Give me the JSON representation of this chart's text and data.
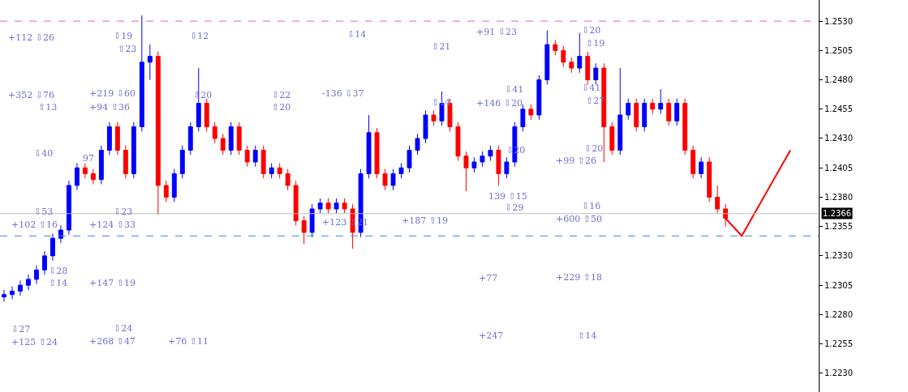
{
  "chart_data": {
    "type": "candlestick",
    "categories": [
      null,
      null,
      null,
      null,
      null,
      null,
      null,
      null,
      null,
      null,
      null,
      null,
      null,
      null,
      null,
      null,
      null,
      null,
      null,
      null,
      null,
      null,
      null,
      null,
      null,
      null,
      null,
      null,
      null,
      null,
      null,
      null,
      null,
      null,
      null,
      null,
      null,
      null,
      null,
      null,
      null,
      null,
      null,
      null,
      null,
      null,
      null,
      null,
      null,
      null,
      null,
      null,
      null,
      null,
      null,
      null,
      null,
      null,
      null,
      null,
      null,
      null,
      null,
      null,
      null,
      null,
      null,
      null,
      null,
      null,
      null,
      null,
      null,
      null,
      null,
      null,
      null,
      null,
      null,
      null,
      null,
      null,
      null,
      null,
      null,
      null,
      null,
      null,
      null,
      null,
      null,
      null,
      null,
      null,
      null,
      null,
      null,
      null,
      null,
      null,
      null
    ],
    "ohlc": [
      [
        1.2295,
        1.2301,
        1.2291,
        1.2297
      ],
      [
        1.2297,
        1.2304,
        1.2293,
        1.23
      ],
      [
        1.23,
        1.2309,
        1.2296,
        1.2305
      ],
      [
        1.2305,
        1.2314,
        1.2301,
        1.231
      ],
      [
        1.231,
        1.2322,
        1.2306,
        1.2318
      ],
      [
        1.2318,
        1.2334,
        1.2314,
        1.233
      ],
      [
        1.233,
        1.2349,
        1.2326,
        1.2345
      ],
      [
        1.2345,
        1.2356,
        1.2341,
        1.2352
      ],
      [
        1.2352,
        1.2394,
        1.2348,
        1.239
      ],
      [
        1.239,
        1.2409,
        1.2386,
        1.2405
      ],
      [
        1.2405,
        1.2409,
        1.2396,
        1.24
      ],
      [
        1.24,
        1.2404,
        1.2391,
        1.2395
      ],
      [
        1.2395,
        1.2424,
        1.2391,
        1.242
      ],
      [
        1.242,
        1.2444,
        1.2416,
        1.244
      ],
      [
        1.244,
        1.2444,
        1.2416,
        1.242
      ],
      [
        1.242,
        1.2424,
        1.2396,
        1.24
      ],
      [
        1.24,
        1.2444,
        1.2396,
        1.244
      ],
      [
        1.244,
        1.2535,
        1.2436,
        1.2495
      ],
      [
        1.2495,
        1.251,
        1.248,
        1.25
      ],
      [
        1.25,
        1.2504,
        1.2365,
        1.239
      ],
      [
        1.239,
        1.2394,
        1.2376,
        1.238
      ],
      [
        1.238,
        1.2404,
        1.2376,
        1.24
      ],
      [
        1.24,
        1.2424,
        1.2396,
        1.242
      ],
      [
        1.242,
        1.2444,
        1.2416,
        1.244
      ],
      [
        1.244,
        1.249,
        1.2436,
        1.246
      ],
      [
        1.246,
        1.2464,
        1.2436,
        1.244
      ],
      [
        1.244,
        1.2444,
        1.2426,
        1.243
      ],
      [
        1.243,
        1.2434,
        1.2416,
        1.242
      ],
      [
        1.242,
        1.2444,
        1.2416,
        1.244
      ],
      [
        1.244,
        1.2444,
        1.2416,
        1.242
      ],
      [
        1.242,
        1.2424,
        1.2406,
        1.241
      ],
      [
        1.241,
        1.2424,
        1.2406,
        1.242
      ],
      [
        1.242,
        1.2424,
        1.2396,
        1.24
      ],
      [
        1.24,
        1.2409,
        1.2396,
        1.2405
      ],
      [
        1.2405,
        1.2409,
        1.2396,
        1.24
      ],
      [
        1.24,
        1.2404,
        1.2386,
        1.239
      ],
      [
        1.239,
        1.2394,
        1.2356,
        1.236
      ],
      [
        1.236,
        1.2364,
        1.234,
        1.235
      ],
      [
        1.235,
        1.2374,
        1.2346,
        1.237
      ],
      [
        1.237,
        1.2379,
        1.2366,
        1.2375
      ],
      [
        1.2375,
        1.2379,
        1.2366,
        1.237
      ],
      [
        1.237,
        1.2379,
        1.2366,
        1.2375
      ],
      [
        1.2375,
        1.2379,
        1.2366,
        1.237
      ],
      [
        1.237,
        1.2374,
        1.2336,
        1.235
      ],
      [
        1.235,
        1.2404,
        1.2346,
        1.24
      ],
      [
        1.24,
        1.245,
        1.2396,
        1.2435
      ],
      [
        1.2435,
        1.2439,
        1.2396,
        1.24
      ],
      [
        1.24,
        1.2404,
        1.2386,
        1.239
      ],
      [
        1.239,
        1.2404,
        1.2386,
        1.24
      ],
      [
        1.24,
        1.2409,
        1.2396,
        1.2405
      ],
      [
        1.2405,
        1.2424,
        1.2401,
        1.242
      ],
      [
        1.242,
        1.2434,
        1.2416,
        1.243
      ],
      [
        1.243,
        1.2454,
        1.2426,
        1.245
      ],
      [
        1.245,
        1.2454,
        1.2441,
        1.2445
      ],
      [
        1.2445,
        1.247,
        1.2441,
        1.246
      ],
      [
        1.246,
        1.2464,
        1.2436,
        1.244
      ],
      [
        1.244,
        1.2444,
        1.2411,
        1.2415
      ],
      [
        1.2415,
        1.2419,
        1.2385,
        1.2405
      ],
      [
        1.2405,
        1.2414,
        1.2401,
        1.241
      ],
      [
        1.241,
        1.2419,
        1.2406,
        1.2415
      ],
      [
        1.2415,
        1.2424,
        1.2411,
        1.242
      ],
      [
        1.242,
        1.2424,
        1.239,
        1.24
      ],
      [
        1.24,
        1.2414,
        1.2396,
        1.241
      ],
      [
        1.241,
        1.2444,
        1.2406,
        1.244
      ],
      [
        1.244,
        1.2459,
        1.2436,
        1.2455
      ],
      [
        1.2455,
        1.2459,
        1.2446,
        1.245
      ],
      [
        1.245,
        1.2484,
        1.2446,
        1.248
      ],
      [
        1.248,
        1.2522,
        1.2476,
        1.251
      ],
      [
        1.251,
        1.2514,
        1.2501,
        1.2505
      ],
      [
        1.2505,
        1.2509,
        1.2491,
        1.2495
      ],
      [
        1.2495,
        1.2499,
        1.2486,
        1.249
      ],
      [
        1.249,
        1.252,
        1.2486,
        1.25
      ],
      [
        1.25,
        1.2504,
        1.2476,
        1.248
      ],
      [
        1.248,
        1.2494,
        1.2476,
        1.249
      ],
      [
        1.249,
        1.2494,
        1.241,
        1.244
      ],
      [
        1.244,
        1.2444,
        1.2416,
        1.242
      ],
      [
        1.242,
        1.249,
        1.2416,
        1.245
      ],
      [
        1.245,
        1.2464,
        1.2446,
        1.246
      ],
      [
        1.246,
        1.2464,
        1.2436,
        1.244
      ],
      [
        1.244,
        1.2464,
        1.2436,
        1.246
      ],
      [
        1.246,
        1.2464,
        1.2451,
        1.2455
      ],
      [
        1.2455,
        1.2472,
        1.2451,
        1.246
      ],
      [
        1.246,
        1.2464,
        1.2441,
        1.2445
      ],
      [
        1.2445,
        1.2464,
        1.2441,
        1.246
      ],
      [
        1.246,
        1.2464,
        1.2416,
        1.242
      ],
      [
        1.242,
        1.2424,
        1.2396,
        1.24
      ],
      [
        1.24,
        1.2414,
        1.2396,
        1.241
      ],
      [
        1.241,
        1.2414,
        1.2376,
        1.238
      ],
      [
        1.238,
        1.239,
        1.2366,
        1.237
      ],
      [
        1.237,
        1.2374,
        1.2355,
        1.2362
      ],
      null,
      null,
      null,
      null,
      null,
      null,
      null,
      null,
      null,
      null,
      null
    ],
    "series": [
      {
        "type": "line",
        "color": "#ff0000",
        "values": [
          null,
          null,
          null,
          null,
          null,
          null,
          null,
          null,
          null,
          null,
          null,
          null,
          null,
          null,
          null,
          null,
          null,
          null,
          null,
          null,
          null,
          null,
          null,
          null,
          null,
          null,
          null,
          null,
          null,
          null,
          null,
          null,
          null,
          null,
          null,
          null,
          null,
          null,
          null,
          null,
          null,
          null,
          null,
          null,
          null,
          null,
          null,
          null,
          null,
          null,
          null,
          null,
          null,
          null,
          null,
          null,
          null,
          null,
          null,
          null,
          null,
          null,
          null,
          null,
          null,
          null,
          null,
          null,
          null,
          null,
          null,
          null,
          null,
          null,
          null,
          null,
          null,
          null,
          null,
          null,
          null,
          null,
          null,
          null,
          null,
          null,
          null,
          null,
          null,
          1.2362,
          null,
          1.2347,
          null,
          null,
          null,
          null,
          null,
          1.242,
          null,
          null,
          null
        ]
      }
    ],
    "ylim": [
      1.2214,
      1.2548
    ],
    "yticks": [
      {
        "value": 1.223,
        "label": "1.2230"
      },
      {
        "value": 1.2255,
        "label": "1.2255"
      },
      {
        "value": 1.228,
        "label": "1.2280"
      },
      {
        "value": 1.2305,
        "label": "1.2305"
      },
      {
        "value": 1.233,
        "label": "1.2330"
      },
      {
        "value": 1.2355,
        "label": "1.2355"
      },
      {
        "value": 1.238,
        "label": "1.2380"
      },
      {
        "value": 1.2405,
        "label": "1.2405"
      },
      {
        "value": 1.243,
        "label": "1.2430"
      },
      {
        "value": 1.2455,
        "label": "1.2455"
      },
      {
        "value": 1.248,
        "label": "1.2480"
      },
      {
        "value": 1.2505,
        "label": "1.2505"
      },
      {
        "value": 1.253,
        "label": "1.2530"
      }
    ],
    "tick_labels": "y",
    "ref_lines": [
      {
        "axis": "y",
        "value": 1.253,
        "color": "#e060d0",
        "line_style": "dashed"
      },
      {
        "axis": "y",
        "value": 1.2366,
        "label": "1.2366",
        "color": "#c0c0c0",
        "line_style": "solid"
      },
      {
        "axis": "y",
        "value": 1.2347,
        "color": "#4080e0",
        "line_style": "dashed"
      }
    ],
    "annotations": [
      "+112 ⇩26",
      "+352 ⇩76",
      "⇧13",
      "⇩40",
      "⇩53",
      "+102 ⇧16",
      "⇩28",
      "⇧14",
      "⇩27",
      "+125 ⇧24",
      "⇩19",
      "⇧23",
      "+219 ⇩60",
      "+94 ⇧36",
      "97",
      "⇩23",
      "+124 ⇧33",
      "+147 ⇧19",
      "⇩24",
      "+268 ⇧47",
      "⇩12",
      "⇩20",
      "+76 ⇧11",
      "⇩22",
      "⇧20",
      "⇩14",
      "-136 ⇩37",
      "+123 ⇧21",
      "⇧21",
      "⇧14",
      "+187 ⇧19",
      "+91 ⇩23",
      "⇩41",
      "+146 ⇩20",
      "⇩20",
      "139 ⇧15",
      "⇩29",
      "+77",
      "+247",
      "⇩20",
      "⇧19",
      "⇩41",
      "⇧27",
      "⇩20",
      "+99 ⇧26",
      "⇩16",
      "+600 ⇧50",
      "+229 ⇧18",
      "⇧14"
    ]
  }
}
